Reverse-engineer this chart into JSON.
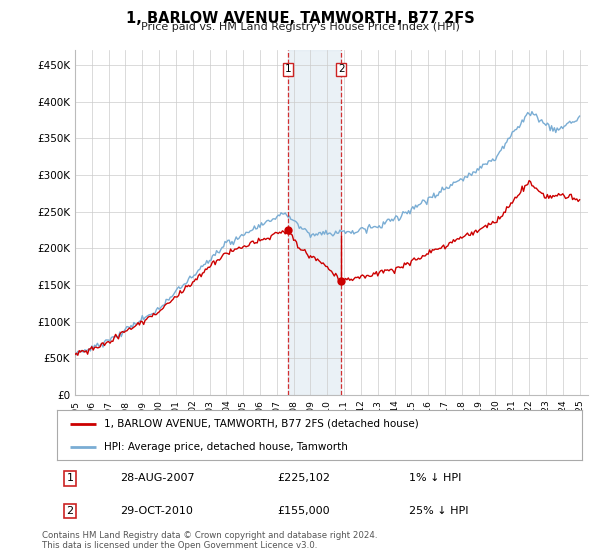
{
  "title": "1, BARLOW AVENUE, TAMWORTH, B77 2FS",
  "subtitle": "Price paid vs. HM Land Registry's House Price Index (HPI)",
  "ylabel_ticks": [
    "£0",
    "£50K",
    "£100K",
    "£150K",
    "£200K",
    "£250K",
    "£300K",
    "£350K",
    "£400K",
    "£450K"
  ],
  "ytick_values": [
    0,
    50000,
    100000,
    150000,
    200000,
    250000,
    300000,
    350000,
    400000,
    450000
  ],
  "ylim": [
    0,
    470000
  ],
  "xlim_start": 1995.0,
  "xlim_end": 2025.5,
  "hpi_color": "#7aadd4",
  "price_color": "#cc0000",
  "transaction1_date": 2007.65,
  "transaction1_price": 225102,
  "transaction2_date": 2010.83,
  "transaction2_price": 155000,
  "legend_label1": "1, BARLOW AVENUE, TAMWORTH, B77 2FS (detached house)",
  "legend_label2": "HPI: Average price, detached house, Tamworth",
  "table_row1_num": "1",
  "table_row1_date": "28-AUG-2007",
  "table_row1_price": "£225,102",
  "table_row1_hpi": "1% ↓ HPI",
  "table_row2_num": "2",
  "table_row2_date": "29-OCT-2010",
  "table_row2_price": "£155,000",
  "table_row2_hpi": "25% ↓ HPI",
  "footnote": "Contains HM Land Registry data © Crown copyright and database right 2024.\nThis data is licensed under the Open Government Licence v3.0.",
  "bg_color": "#ffffff",
  "grid_color": "#cccccc",
  "shade_color": "#dde8f0"
}
